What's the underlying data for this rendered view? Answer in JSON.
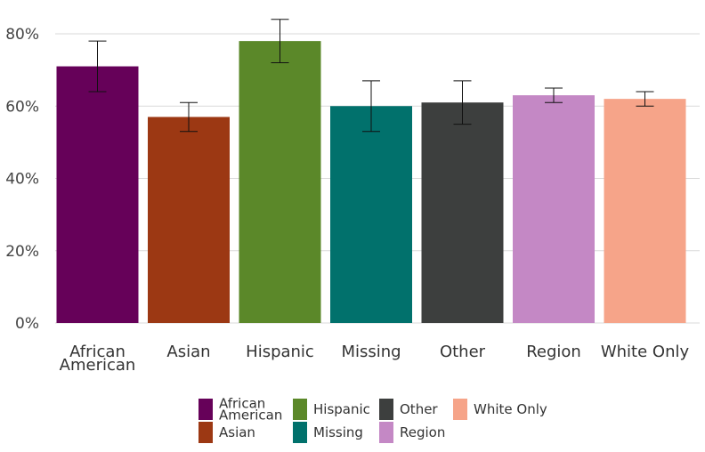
{
  "chart_data": {
    "type": "bar",
    "title": "",
    "xlabel": "",
    "ylabel": "",
    "ylim": [
      0,
      80
    ],
    "y_ticks": [
      0,
      20,
      40,
      60,
      80
    ],
    "y_tick_labels": [
      "0%",
      "20%",
      "40%",
      "60%",
      "80%"
    ],
    "grid": "horizontal",
    "legend_placement": "bottom",
    "categories": [
      {
        "label_lines": [
          "African",
          "American"
        ],
        "value": 71,
        "err_low": 64,
        "err_high": 78,
        "color": "#660159"
      },
      {
        "label_lines": [
          "Asian"
        ],
        "value": 57,
        "err_low": 53,
        "err_high": 61,
        "color": "#9C3813"
      },
      {
        "label_lines": [
          "Hispanic"
        ],
        "value": 78,
        "err_low": 72,
        "err_high": 84,
        "color": "#5B8829"
      },
      {
        "label_lines": [
          "Missing"
        ],
        "value": 60,
        "err_low": 53,
        "err_high": 67,
        "color": "#01716C"
      },
      {
        "label_lines": [
          "Other"
        ],
        "value": 61,
        "err_low": 55,
        "err_high": 67,
        "color": "#3D3F3E"
      },
      {
        "label_lines": [
          "Region"
        ],
        "value": 63,
        "err_low": 61,
        "err_high": 65,
        "color": "#C488C5"
      },
      {
        "label_lines": [
          "White Only"
        ],
        "value": 62,
        "err_low": 60,
        "err_high": 64,
        "color": "#F6A489"
      }
    ]
  }
}
